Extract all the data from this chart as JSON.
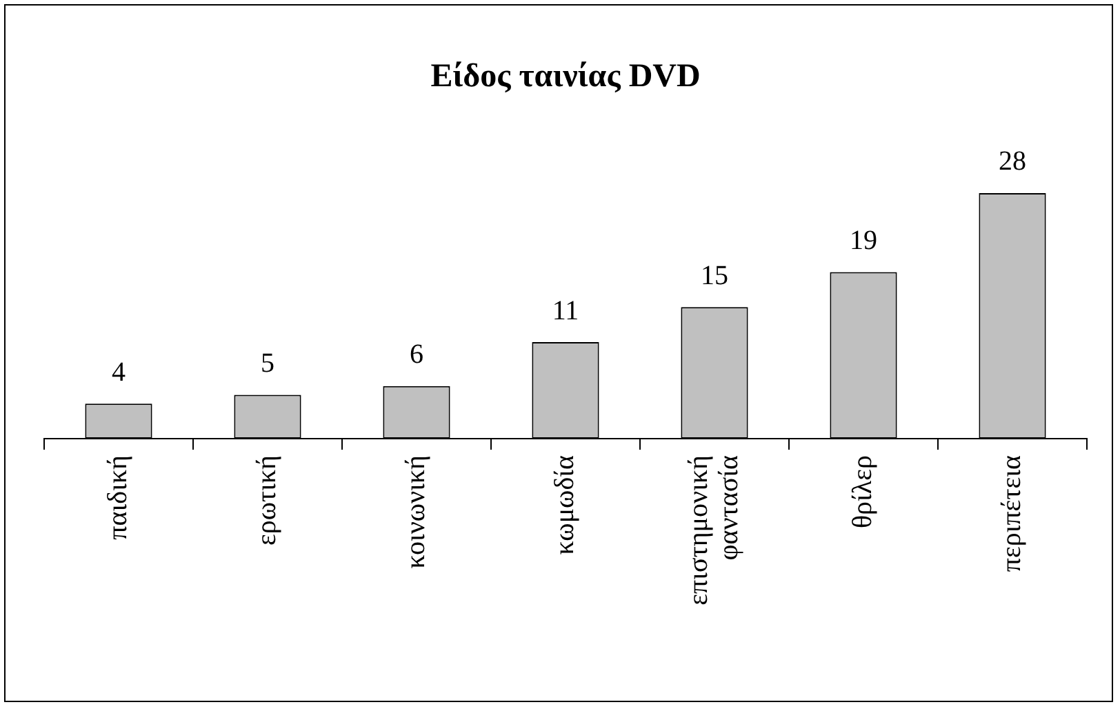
{
  "chart_data": {
    "type": "bar",
    "title": "Είδος ταινίας DVD",
    "categories": [
      "παιδική",
      "ερωτική",
      "κοινωνική",
      "κωμωδία",
      "επιστημονική φαντασία",
      "θρίλερ",
      "περιπέτεια"
    ],
    "values": [
      4,
      5,
      6,
      11,
      15,
      19,
      28
    ],
    "color": "#c0c0c0",
    "data_labels": true,
    "grid": false,
    "legend": false
  }
}
